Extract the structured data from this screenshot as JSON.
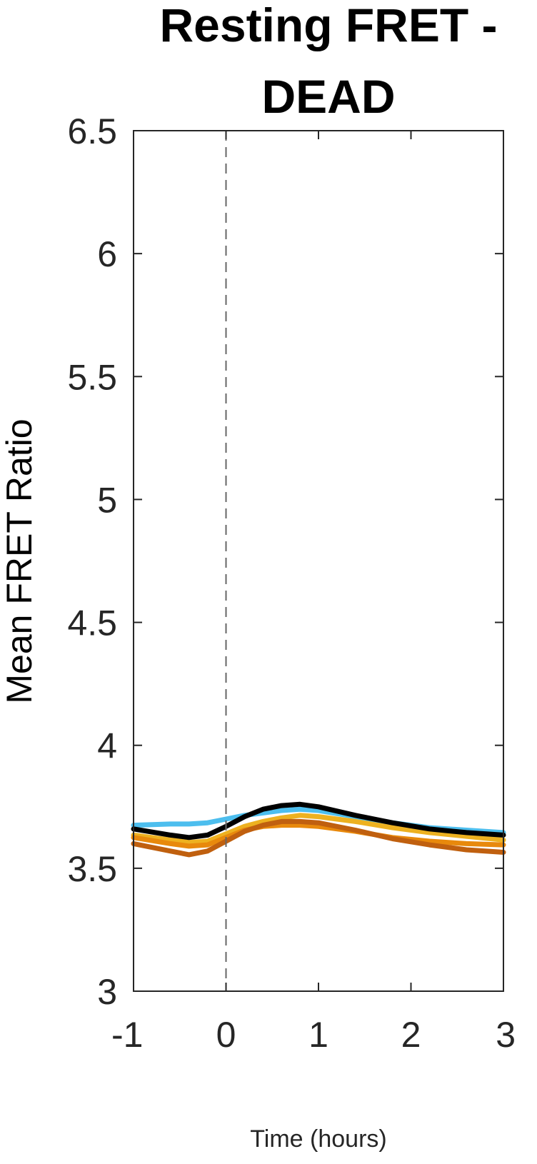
{
  "chart_data": {
    "type": "line",
    "title_lines": [
      "Resting FRET -",
      "DEAD"
    ],
    "xlabel": "Time (hours)",
    "ylabel": "Mean FRET Ratio",
    "xlim": [
      -1,
      3
    ],
    "ylim": [
      3,
      6.5
    ],
    "x_ticks": [
      "-1",
      "0",
      "1",
      "2",
      "3"
    ],
    "y_ticks": [
      "3",
      "3.5",
      "4",
      "4.5",
      "5",
      "5.5",
      "6",
      "6.5"
    ],
    "grid": false,
    "reference_line": {
      "x": 0,
      "style": "dashed"
    },
    "series": [
      {
        "color": "#4DBEEE",
        "x": [
          -1,
          -0.6,
          -0.4,
          -0.2,
          0,
          0.2,
          0.4,
          0.6,
          0.8,
          1.0,
          1.4,
          1.8,
          2.2,
          2.6,
          3
        ],
        "y": [
          3.675,
          3.68,
          3.68,
          3.685,
          3.7,
          3.715,
          3.725,
          3.735,
          3.74,
          3.735,
          3.71,
          3.685,
          3.665,
          3.655,
          3.645
        ]
      },
      {
        "color": "#FFFFFF",
        "x": [
          -1,
          -0.6,
          -0.4,
          -0.2,
          0,
          0.2,
          0.4,
          0.6,
          0.8,
          1.0,
          1.4,
          1.8,
          2.2,
          2.6,
          3
        ],
        "y": [
          3.64,
          3.625,
          3.615,
          3.62,
          3.645,
          3.675,
          3.69,
          3.7,
          3.7,
          3.69,
          3.665,
          3.63,
          3.605,
          3.585,
          3.575
        ]
      },
      {
        "color": "#EDB120",
        "x": [
          -1,
          -0.6,
          -0.4,
          -0.2,
          0,
          0.2,
          0.4,
          0.6,
          0.8,
          1.0,
          1.4,
          1.8,
          2.2,
          2.6,
          3
        ],
        "y": [
          3.635,
          3.615,
          3.605,
          3.61,
          3.64,
          3.67,
          3.69,
          3.705,
          3.715,
          3.71,
          3.69,
          3.665,
          3.645,
          3.63,
          3.615
        ]
      },
      {
        "color": "#E8890C",
        "x": [
          -1,
          -0.6,
          -0.4,
          -0.2,
          0,
          0.2,
          0.4,
          0.6,
          0.8,
          1.0,
          1.4,
          1.8,
          2.2,
          2.6,
          3
        ],
        "y": [
          3.625,
          3.6,
          3.59,
          3.595,
          3.625,
          3.655,
          3.67,
          3.675,
          3.675,
          3.67,
          3.65,
          3.625,
          3.61,
          3.6,
          3.595
        ]
      },
      {
        "color": "#C0600F",
        "x": [
          -1,
          -0.6,
          -0.4,
          -0.2,
          0,
          0.2,
          0.4,
          0.6,
          0.8,
          1.0,
          1.4,
          1.8,
          2.2,
          2.6,
          3
        ],
        "y": [
          3.6,
          3.57,
          3.555,
          3.57,
          3.61,
          3.65,
          3.675,
          3.69,
          3.69,
          3.685,
          3.655,
          3.62,
          3.595,
          3.575,
          3.565
        ]
      },
      {
        "color": "#000000",
        "x": [
          -1,
          -0.6,
          -0.4,
          -0.2,
          0,
          0.2,
          0.4,
          0.6,
          0.8,
          1.0,
          1.4,
          1.8,
          2.2,
          2.6,
          3
        ],
        "y": [
          3.66,
          3.635,
          3.625,
          3.635,
          3.67,
          3.71,
          3.74,
          3.755,
          3.76,
          3.75,
          3.715,
          3.685,
          3.66,
          3.645,
          3.635
        ]
      }
    ]
  }
}
